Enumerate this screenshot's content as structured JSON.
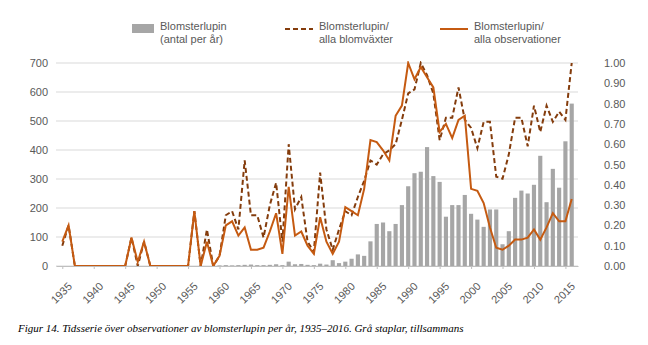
{
  "chart_data": {
    "type": "bar",
    "annotations": [
      "Figur 14. Tidsserie över observationer av blomsterlupin per år, 1935–2016. Grå staplar, tillsammans"
    ],
    "x": [
      1935,
      1936,
      1937,
      1938,
      1939,
      1940,
      1941,
      1942,
      1943,
      1944,
      1945,
      1946,
      1947,
      1948,
      1949,
      1950,
      1951,
      1952,
      1953,
      1954,
      1955,
      1956,
      1957,
      1958,
      1959,
      1960,
      1961,
      1962,
      1963,
      1964,
      1965,
      1966,
      1967,
      1968,
      1969,
      1970,
      1971,
      1972,
      1973,
      1974,
      1975,
      1976,
      1977,
      1978,
      1979,
      1980,
      1981,
      1982,
      1983,
      1984,
      1985,
      1986,
      1987,
      1988,
      1989,
      1990,
      1991,
      1992,
      1993,
      1994,
      1995,
      1996,
      1997,
      1998,
      1999,
      2000,
      2001,
      2002,
      2003,
      2004,
      2005,
      2006,
      2007,
      2008,
      2009,
      2010,
      2011,
      2012,
      2013,
      2014,
      2015,
      2016
    ],
    "xlim": [
      1934,
      2017
    ],
    "xticks": [
      1935,
      1940,
      1945,
      1950,
      1955,
      1960,
      1965,
      1970,
      1975,
      1980,
      1985,
      1990,
      1995,
      2000,
      2005,
      2010,
      2015
    ],
    "ylim": [
      0,
      700
    ],
    "yticks": [
      0,
      100,
      200,
      300,
      400,
      500,
      600,
      700
    ],
    "y2lim": [
      0,
      1
    ],
    "y2ticks": [
      {
        "value": 0,
        "label": "0.00"
      },
      {
        "value": 0.1,
        "label": "0.10"
      },
      {
        "value": 0.2,
        "label": "0.20"
      },
      {
        "value": 0.3,
        "label": "0.30"
      },
      {
        "value": 0.4,
        "label": "0.40"
      },
      {
        "value": 0.5,
        "label": "0.50"
      },
      {
        "value": 0.6,
        "label": "0.60"
      },
      {
        "value": 0.7,
        "label": "0.70"
      },
      {
        "value": 0.8,
        "label": "0.80"
      },
      {
        "value": 0.9,
        "label": "0.90"
      },
      {
        "value": 1,
        "label": "1.00"
      }
    ],
    "grid": true,
    "legend": "top",
    "series": [
      {
        "name": "Blomsterlupin\n(antal per år)",
        "type": "bar",
        "color": "#a6a6a6",
        "values": [
          0,
          0,
          0,
          0,
          0,
          0,
          0,
          0,
          0,
          0,
          0,
          0,
          0,
          0,
          0,
          0,
          0,
          0,
          0,
          0,
          0,
          0,
          0,
          0,
          0,
          2,
          3,
          2,
          3,
          4,
          5,
          3,
          3,
          4,
          6,
          3,
          15,
          6,
          7,
          4,
          3,
          8,
          5,
          20,
          10,
          15,
          25,
          40,
          35,
          85,
          145,
          150,
          120,
          145,
          210,
          275,
          320,
          325,
          410,
          310,
          290,
          170,
          210,
          210,
          245,
          180,
          160,
          135,
          195,
          195,
          75,
          120,
          235,
          260,
          250,
          280,
          380,
          220,
          335,
          270,
          430,
          560
        ]
      },
      {
        "name": "Blomsterlupin/\nalla blomväxter",
        "type": "line",
        "line_style": "dashed",
        "color": "#843c0c",
        "axis": "y2",
        "values": [
          0.1,
          0.2,
          0,
          0,
          0,
          0,
          0,
          0,
          0,
          0,
          0,
          0.14,
          0,
          0.12,
          0,
          0,
          0,
          0,
          0,
          0,
          0,
          0.27,
          0,
          0.18,
          0,
          0.05,
          0.25,
          0.27,
          0.18,
          0.52,
          0.25,
          0.25,
          0.14,
          0.3,
          0.41,
          0.12,
          0.6,
          0.28,
          0.34,
          0.12,
          0.07,
          0.46,
          0.18,
          0.08,
          0.18,
          0.27,
          0.25,
          0.34,
          0.42,
          0.52,
          0.5,
          0.55,
          0.57,
          0.6,
          0.72,
          0.85,
          0.87,
          1.0,
          0.94,
          0.85,
          0.62,
          0.73,
          0.73,
          0.88,
          0.72,
          0.68,
          0.58,
          0.71,
          0.71,
          0.44,
          0.43,
          0.55,
          0.73,
          0.73,
          0.59,
          0.79,
          0.66,
          0.79,
          0.71,
          0.76,
          0.72,
          1.0
        ]
      },
      {
        "name": "Blomsterlupin/\nalla observationer",
        "type": "line",
        "line_style": "solid",
        "color": "#c55a11",
        "axis": "y2",
        "values": [
          0.12,
          0.2,
          0,
          0,
          0,
          0,
          0,
          0,
          0,
          0,
          0,
          0.14,
          0.02,
          0.12,
          0,
          0,
          0,
          0,
          0,
          0,
          0,
          0.27,
          0,
          0.12,
          0,
          0.05,
          0.2,
          0.22,
          0.15,
          0.19,
          0.08,
          0.08,
          0.09,
          0.17,
          0.26,
          0.06,
          0.39,
          0.15,
          0.17,
          0.1,
          0.06,
          0.24,
          0.12,
          0.06,
          0.12,
          0.29,
          0.27,
          0.25,
          0.38,
          0.62,
          0.61,
          0.57,
          0.52,
          0.74,
          0.79,
          1.0,
          0.92,
          0.98,
          0.93,
          0.88,
          0.66,
          0.7,
          0.63,
          0.72,
          0.74,
          0.38,
          0.37,
          0.31,
          0.19,
          0.09,
          0.08,
          0.1,
          0.13,
          0.13,
          0.14,
          0.18,
          0.13,
          0.19,
          0.26,
          0.22,
          0.22,
          0.33
        ]
      }
    ]
  }
}
